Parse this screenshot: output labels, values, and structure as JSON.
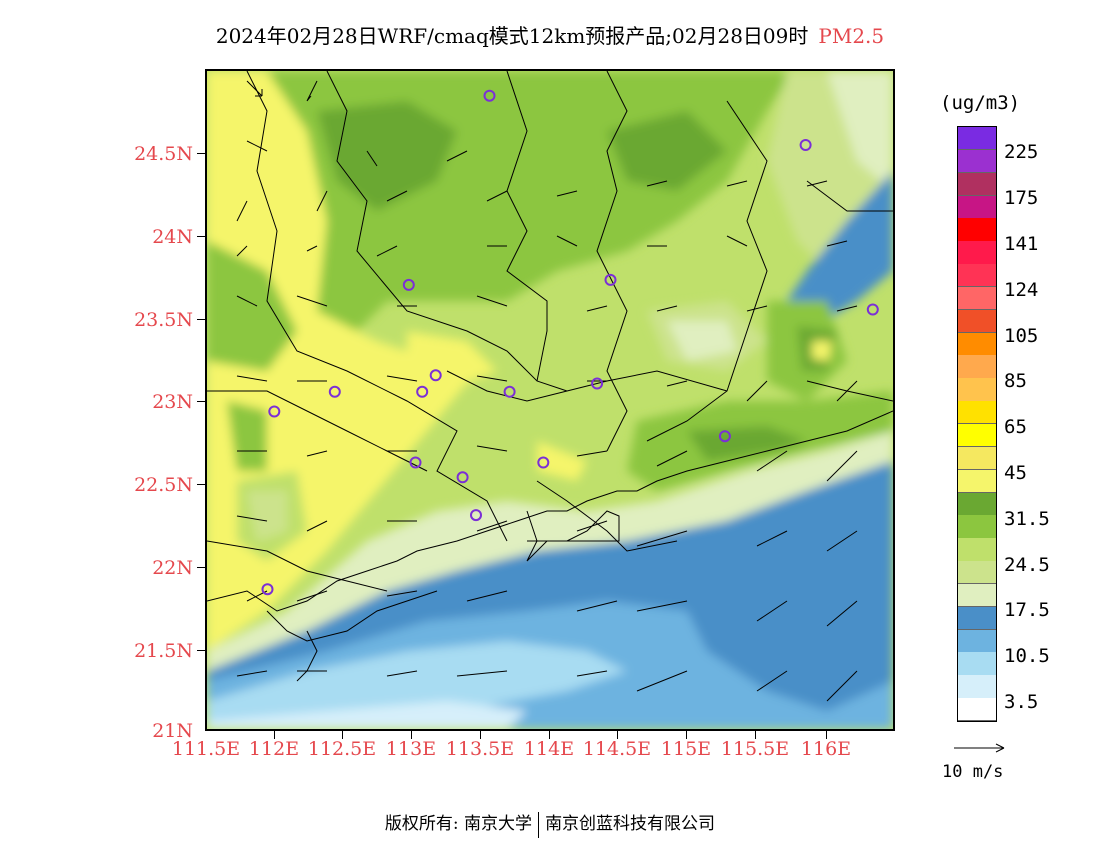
{
  "title": {
    "text": "2024年02月28日WRF/cmaq模式12km预报产品;02月28日09时",
    "variable": "PM2.5"
  },
  "map": {
    "lat_labels": [
      "24.5N",
      "24N",
      "23.5N",
      "23N",
      "22.5N",
      "22N",
      "21.5N",
      "21N"
    ],
    "lon_labels": [
      "111.5E",
      "112E",
      "112.5E",
      "113E",
      "113.5E",
      "114E",
      "114.5E",
      "115E",
      "115.5E",
      "116E"
    ],
    "lat_range": [
      21,
      25
    ],
    "lon_range": [
      111.5,
      116.6
    ],
    "station_color": "#7b2fd6",
    "stations": [
      {
        "lon": 113.6,
        "lat": 24.85
      },
      {
        "lon": 115.95,
        "lat": 24.55
      },
      {
        "lon": 113.0,
        "lat": 23.7
      },
      {
        "lon": 114.5,
        "lat": 23.73
      },
      {
        "lon": 116.45,
        "lat": 23.55
      },
      {
        "lon": 113.2,
        "lat": 23.15
      },
      {
        "lon": 112.45,
        "lat": 23.05
      },
      {
        "lon": 113.1,
        "lat": 23.05
      },
      {
        "lon": 113.75,
        "lat": 23.05
      },
      {
        "lon": 114.4,
        "lat": 23.1
      },
      {
        "lon": 112.0,
        "lat": 22.93
      },
      {
        "lon": 115.35,
        "lat": 22.78
      },
      {
        "lon": 113.05,
        "lat": 22.62
      },
      {
        "lon": 114.0,
        "lat": 22.62
      },
      {
        "lon": 113.4,
        "lat": 22.53
      },
      {
        "lon": 113.5,
        "lat": 22.3
      },
      {
        "lon": 111.95,
        "lat": 21.85
      }
    ]
  },
  "legend": {
    "unit": "(ug/m3)",
    "colors": [
      "#7a2be2",
      "#9b30d0",
      "#b03060",
      "#c71585",
      "#ff0000",
      "#ff1a4b",
      "#ff3355",
      "#ff6666",
      "#f05028",
      "#ff8c00",
      "#ffa94d",
      "#ffc34d",
      "#ffe100",
      "#ffff00",
      "#f5e860",
      "#f5f56b",
      "#6aa832",
      "#8cc63f",
      "#bfe06b",
      "#cce38c",
      "#e0efc0",
      "#4a8fc8",
      "#6db3e0",
      "#a8dcf2",
      "#d6effa",
      "#ffffff"
    ],
    "labels": [
      "225",
      "175",
      "141",
      "124",
      "105",
      "85",
      "65",
      "45",
      "31.5",
      "24.5",
      "17.5",
      "10.5",
      "3.5"
    ]
  },
  "wind_reference": {
    "label": "10 m/s"
  },
  "footer": {
    "left": "版权所有: 南京大学",
    "right": "南京创蓝科技有限公司"
  }
}
